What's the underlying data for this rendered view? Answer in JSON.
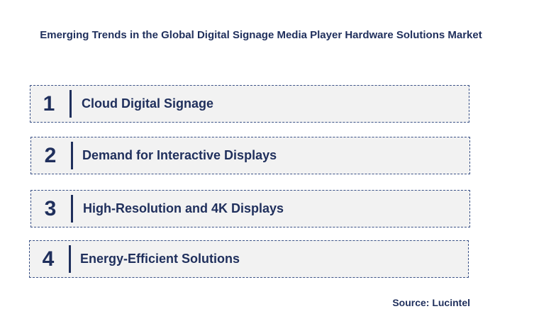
{
  "title": "Emerging Trends in the Global Digital Signage Media Player Hardware Solutions Market",
  "trends": [
    {
      "number": "1",
      "label": "Cloud Digital Signage"
    },
    {
      "number": "2",
      "label": "Demand for Interactive Displays"
    },
    {
      "number": "3",
      "label": "High-Resolution and 4K Displays"
    },
    {
      "number": "4",
      "label": "Energy-Efficient Solutions"
    }
  ],
  "source": "Source: Lucintel"
}
